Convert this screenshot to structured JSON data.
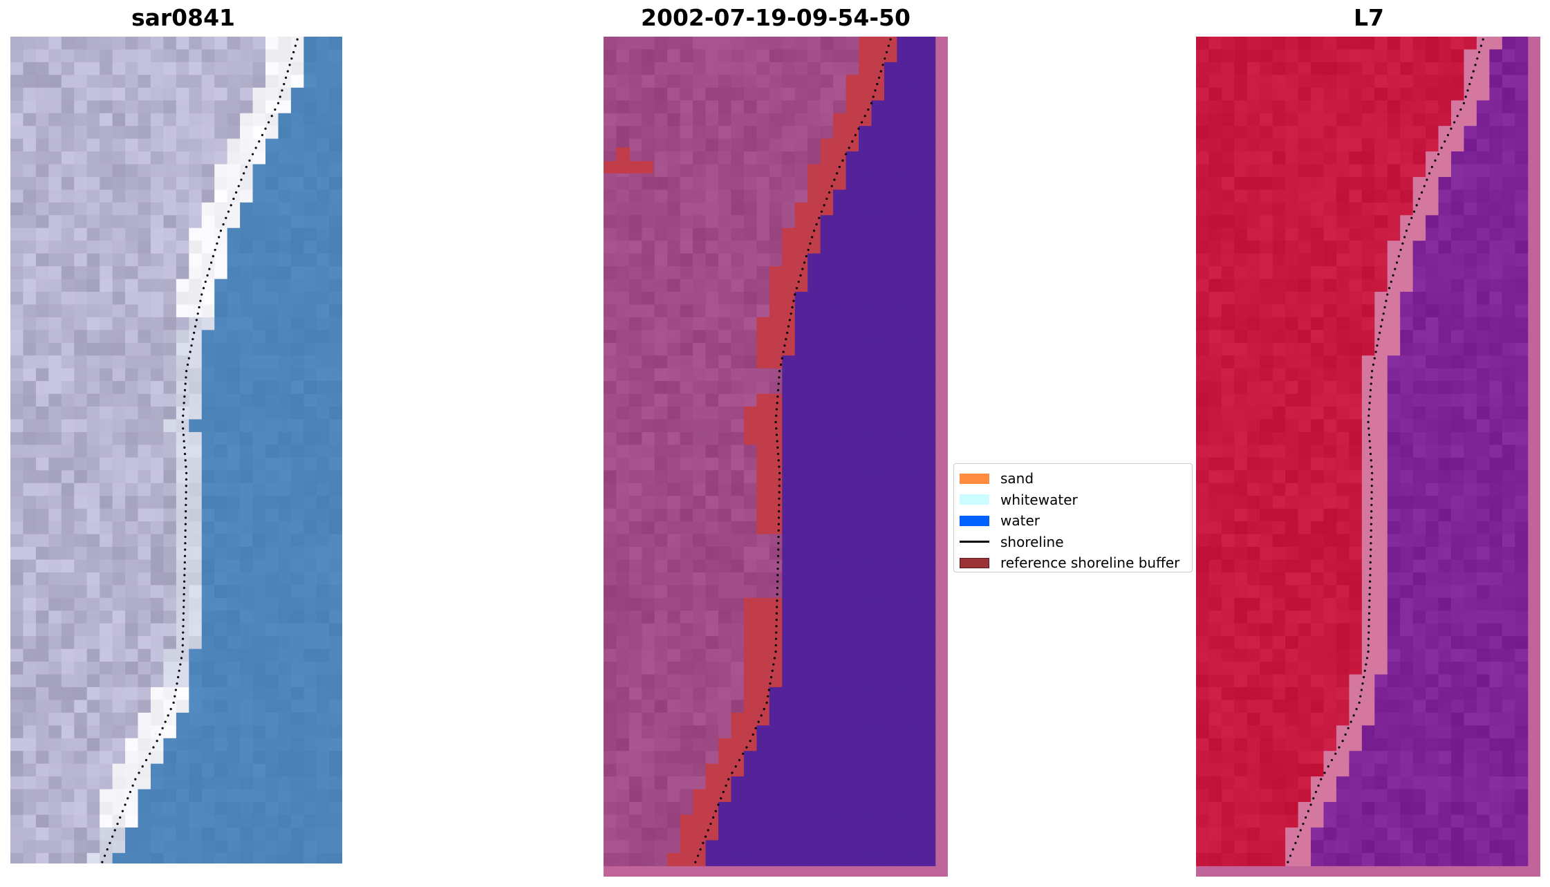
{
  "panels": [
    {
      "title": "sar0841"
    },
    {
      "title": "2002-07-19-09-54-50"
    },
    {
      "title": "L7"
    }
  ],
  "legend": {
    "items": [
      {
        "label": "sand",
        "kind": "patch",
        "color": "#ff8c3f"
      },
      {
        "label": "whitewater",
        "kind": "patch",
        "color": "#ccfcff"
      },
      {
        "label": "water",
        "kind": "patch",
        "color": "#0061ff"
      },
      {
        "label": "shoreline",
        "kind": "line",
        "color": "#000000"
      },
      {
        "label": "reference shoreline buffer",
        "kind": "patch",
        "color": "#9a3436",
        "edge": "#5a1a1a"
      }
    ]
  },
  "colors": {
    "rgb_land": "#b6b3cf",
    "rgb_water": "#4e85ba",
    "rgb_whitewater": "#f4f4f8",
    "class_land": "#9f4b86",
    "class_water": "#54239a",
    "class_buffer": "#c13d4a",
    "class_border": "#c06499",
    "l7_land": "#c7183f",
    "l7_water": "#7d2496",
    "l7_border": "#c06499"
  }
}
